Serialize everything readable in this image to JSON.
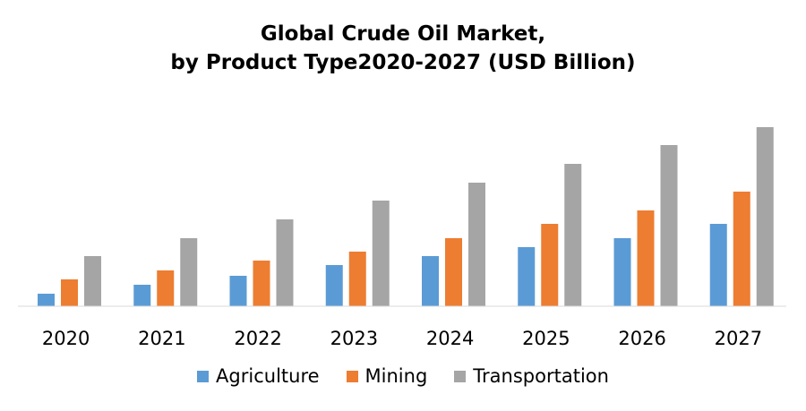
{
  "chart_data": {
    "type": "bar",
    "title_line1": "Global Crude Oil Market,",
    "title_line2": "by Product Type2020-2027 (USD Billion)",
    "categories": [
      "2020",
      "2021",
      "2022",
      "2023",
      "2024",
      "2025",
      "2026",
      "2027"
    ],
    "series": [
      {
        "name": "Agriculture",
        "color": "#5B9BD5",
        "values": [
          14,
          24,
          34,
          46,
          56,
          66,
          76,
          92
        ]
      },
      {
        "name": "Mining",
        "color": "#ED7D31",
        "values": [
          30,
          40,
          51,
          61,
          76,
          92,
          107,
          128
        ]
      },
      {
        "name": "Transportation",
        "color": "#A5A5A5",
        "values": [
          56,
          76,
          97,
          118,
          138,
          159,
          180,
          200
        ]
      }
    ],
    "ylim": [
      0,
      210
    ],
    "grid": false,
    "legend_position": "bottom"
  }
}
